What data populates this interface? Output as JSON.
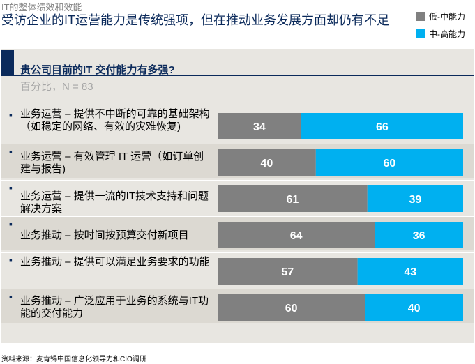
{
  "header": {
    "section": "IT的整体绩效和效能",
    "title": "受访企业的IT运营能力是传统强项，但在推动业务发展方面却仍有不足"
  },
  "legend": [
    {
      "label": "低-中能力",
      "color": "#808080"
    },
    {
      "label": "中-高能力",
      "color": "#00b0f0"
    }
  ],
  "question": {
    "text": "贵公司目前的IT 交付能力有多强?",
    "subtitle": "百分比，N = 83"
  },
  "chart_data": {
    "type": "bar",
    "stacked": true,
    "orientation": "horizontal",
    "title": "贵公司目前的IT 交付能力有多强?",
    "subtitle": "百分比，N = 83",
    "categories": [
      "业务运营 – 提供不中断的可靠的基础架构（如稳定的网络、有效的灾难恢复)",
      "业务运营 – 有效管理 IT 运营（如订单创建与报告)",
      "业务运营 – 提供一流的IT技术支持和问题解决方案",
      "业务推动 – 按时间按预算交付新项目",
      "业务推动 – 提供可以满足业务要求的功能",
      "业务推动 – 广泛应用于业务的系统与IT功能的交付能力"
    ],
    "series": [
      {
        "name": "低-中能力",
        "color": "#808080",
        "values": [
          34,
          40,
          61,
          64,
          57,
          60
        ]
      },
      {
        "name": "中-高能力",
        "color": "#00b0f0",
        "values": [
          66,
          60,
          39,
          36,
          43,
          40
        ]
      }
    ],
    "xlim": [
      0,
      100
    ]
  },
  "rows": [
    {
      "label": "业务运营 – 提供不中断的可靠的基础架构（如稳定的网络、有效的灾难恢复)"
    },
    {
      "label": "业务运营 – 有效管理 IT 运营（如订单创建与报告)"
    },
    {
      "label": "业务运营 – 提供一流的IT技术支持和问题解决方案"
    },
    {
      "label": "业务推动 – 按时间按预算交付新项目"
    },
    {
      "label": "业务推动 – 提供可以满足业务要求的功能"
    },
    {
      "label": "业务推动 – 广泛应用于业务的系统与IT功能的交付能力"
    }
  ],
  "footer": {
    "source": "资料来源：麦肯锡中国信息化领导力和CIO调研"
  }
}
